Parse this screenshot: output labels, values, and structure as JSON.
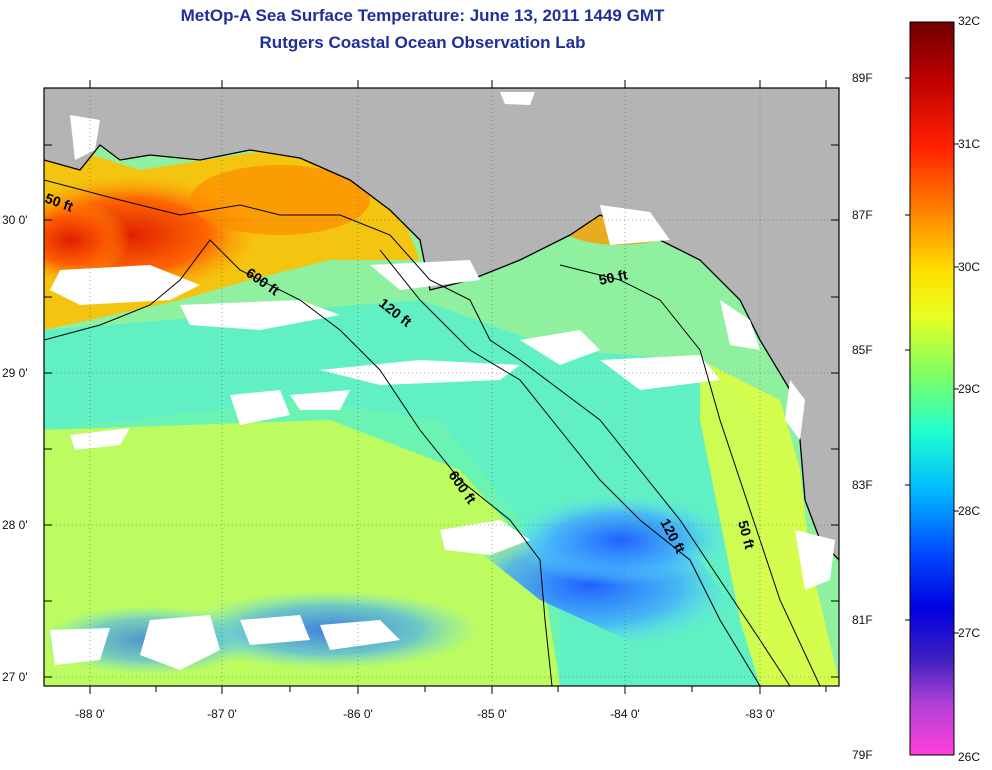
{
  "title": {
    "line1": "MetOp-A Sea Surface Temperature:  June 13, 2011 1449 GMT",
    "line2": "Rutgers Coastal Ocean Observation Lab"
  },
  "map": {
    "latitude_labels": [
      "30 0'",
      "29 0'",
      "28 0'",
      "27 0'"
    ],
    "longitude_labels": [
      "-88 0'",
      "-87 0'",
      "-86 0'",
      "-85 0'",
      "-84 0'",
      "-83 0'"
    ],
    "isobath_labels": [
      "50 ft",
      "600 ft",
      "120 ft",
      "50 ft",
      "600 ft",
      "120 ft",
      "50 ft"
    ],
    "land_color": "#b4b4b4",
    "cloud_color": "#ffffff"
  },
  "colorbar": {
    "celsius_labels": [
      "32C",
      "31C",
      "30C",
      "29C",
      "28C",
      "27C",
      "26C"
    ],
    "fahrenheit_labels": [
      "89F",
      "87F",
      "85F",
      "83F",
      "81F",
      "79F"
    ],
    "colors": [
      "#7a0000",
      "#d40000",
      "#ff5a00",
      "#ffb000",
      "#ffff00",
      "#a0ff40",
      "#30ffc0",
      "#00d8ff",
      "#0060ff",
      "#0000e0",
      "#9040d0",
      "#ff40d0"
    ]
  }
}
